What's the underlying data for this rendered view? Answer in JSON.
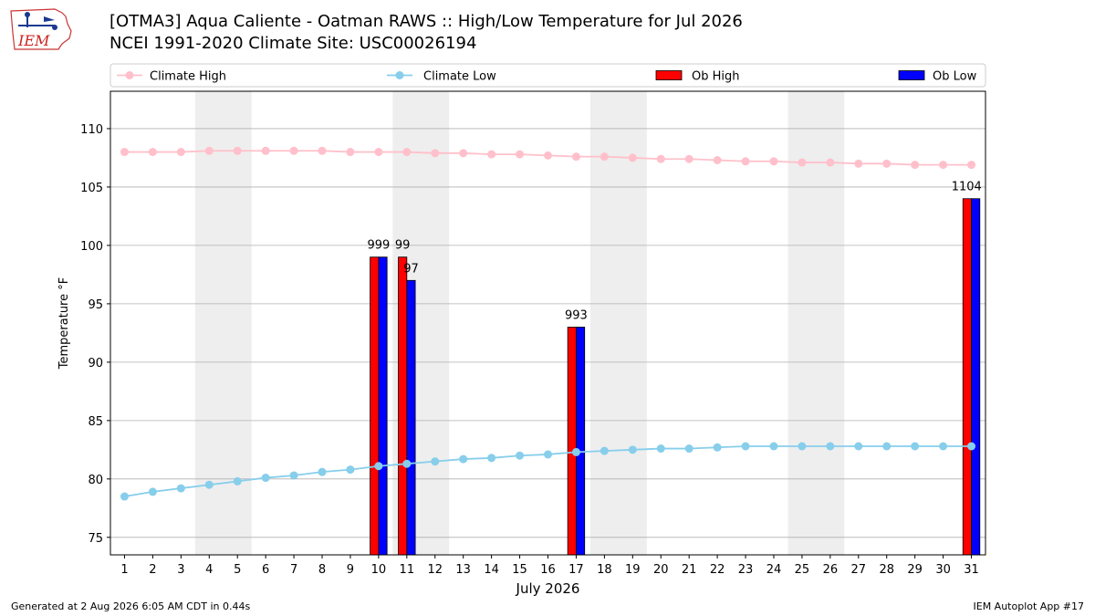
{
  "header": {
    "title_line1": "[OTMA3] Aqua Caliente - Oatman RAWS :: High/Low Temperature for Jul 2026",
    "title_line2": "NCEI 1991-2020 Climate Site: USC00026194"
  },
  "logo": {
    "text": "IEM"
  },
  "footer": {
    "left": "Generated at 2 Aug 2026 6:05 AM CDT in 0.44s",
    "right": "IEM Autoplot App #17"
  },
  "colors": {
    "climate_high": "#ffc0cb",
    "climate_low": "#87ceeb",
    "ob_high": "#ff0000",
    "ob_low": "#0000ff",
    "weekend_shade": "#eeeeee",
    "grid": "#b0b0b0"
  },
  "chart_data": {
    "type": "bar",
    "xlabel": "July 2026",
    "ylabel": "Temperature °F",
    "xlim": [
      0.5,
      31.5
    ],
    "ylim": [
      73.5,
      113.2
    ],
    "yticks": [
      75,
      80,
      85,
      90,
      95,
      100,
      105,
      110
    ],
    "x": [
      1,
      2,
      3,
      4,
      5,
      6,
      7,
      8,
      9,
      10,
      11,
      12,
      13,
      14,
      15,
      16,
      17,
      18,
      19,
      20,
      21,
      22,
      23,
      24,
      25,
      26,
      27,
      28,
      29,
      30,
      31
    ],
    "weekend_shading": [
      [
        3.5,
        5.5
      ],
      [
        10.5,
        12.5
      ],
      [
        17.5,
        19.5
      ],
      [
        24.5,
        26.5
      ]
    ],
    "grid": "horizontal",
    "legend": {
      "placement": "top",
      "entries": [
        "Climate High",
        "Climate Low",
        "Ob High",
        "Ob Low"
      ]
    },
    "series": [
      {
        "name": "Climate High",
        "kind": "line",
        "values": [
          108.0,
          108.0,
          108.0,
          108.1,
          108.1,
          108.1,
          108.1,
          108.1,
          108.0,
          108.0,
          108.0,
          107.9,
          107.9,
          107.8,
          107.8,
          107.7,
          107.6,
          107.6,
          107.5,
          107.4,
          107.4,
          107.3,
          107.2,
          107.2,
          107.1,
          107.1,
          107.0,
          107.0,
          106.9,
          106.9,
          106.9
        ]
      },
      {
        "name": "Climate Low",
        "kind": "line",
        "values": [
          78.5,
          78.9,
          79.2,
          79.5,
          79.8,
          80.1,
          80.3,
          80.6,
          80.8,
          81.1,
          81.3,
          81.5,
          81.7,
          81.8,
          82.0,
          82.1,
          82.3,
          82.4,
          82.5,
          82.6,
          82.6,
          82.7,
          82.8,
          82.8,
          82.8,
          82.8,
          82.8,
          82.8,
          82.8,
          82.8,
          82.8
        ]
      },
      {
        "name": "Ob High",
        "kind": "bar",
        "points": [
          {
            "x": 10,
            "value": 99
          },
          {
            "x": 11,
            "value": 99
          },
          {
            "x": 17,
            "value": 93
          },
          {
            "x": 31,
            "value": 104
          }
        ]
      },
      {
        "name": "Ob Low",
        "kind": "bar",
        "points": [
          {
            "x": 10,
            "value": 99
          },
          {
            "x": 11,
            "value": 97
          },
          {
            "x": 17,
            "value": 93
          },
          {
            "x": 31,
            "value": 104
          }
        ]
      }
    ],
    "data_labels": [
      {
        "x": 10,
        "text": "999"
      },
      {
        "x": 11,
        "text": "99"
      },
      {
        "x": 11,
        "text": "97"
      },
      {
        "x": 17,
        "text": "993"
      },
      {
        "x": 31,
        "text": "1104"
      }
    ]
  }
}
